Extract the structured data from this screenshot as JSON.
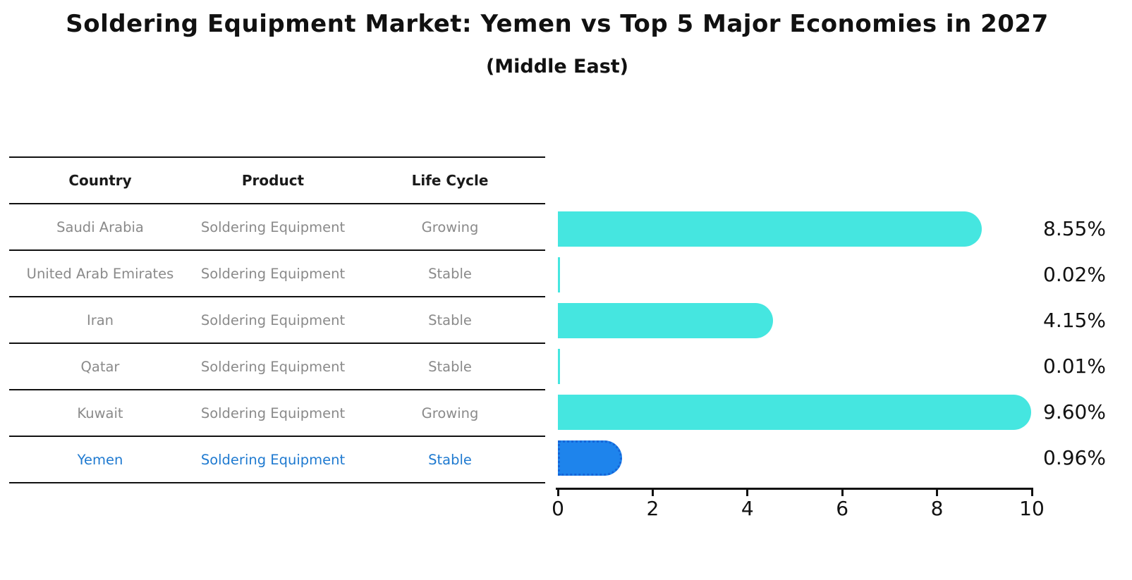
{
  "title": "Soldering Equipment Market: Yemen vs Top 5 Major Economies in 2027",
  "subtitle": "(Middle East)",
  "table": {
    "headers": [
      "Country",
      "Product",
      "Life Cycle"
    ],
    "rows": [
      {
        "country": "Saudi Arabia",
        "product": "Soldering Equipment",
        "life_cycle": "Growing",
        "highlight": false
      },
      {
        "country": "United Arab Emirates",
        "product": "Soldering Equipment",
        "life_cycle": "Stable",
        "highlight": false
      },
      {
        "country": "Iran",
        "product": "Soldering Equipment",
        "life_cycle": "Stable",
        "highlight": false
      },
      {
        "country": "Qatar",
        "product": "Soldering Equipment",
        "life_cycle": "Stable",
        "highlight": false
      },
      {
        "country": "Kuwait",
        "product": "Soldering Equipment",
        "life_cycle": "Growing",
        "highlight": false
      },
      {
        "country": "Yemen",
        "product": "Soldering Equipment",
        "life_cycle": "Stable",
        "highlight": true
      }
    ]
  },
  "chart_data": {
    "type": "bar",
    "orientation": "horizontal",
    "categories": [
      "Saudi Arabia",
      "United Arab Emirates",
      "Iran",
      "Qatar",
      "Kuwait",
      "Yemen"
    ],
    "values": [
      8.55,
      0.02,
      4.15,
      0.01,
      9.6,
      0.96
    ],
    "labels": [
      "8.55%",
      "0.02%",
      "4.15%",
      "0.01%",
      "9.60%",
      "0.96%"
    ],
    "highlight_index": 5,
    "xlim": [
      0,
      10
    ],
    "xticks": [
      0,
      2,
      4,
      6,
      8,
      10
    ],
    "grid": false,
    "legend": "none",
    "title": "Soldering Equipment Market: Yemen vs Top 5 Major Economies in 2027 (Middle East)",
    "xlabel": "",
    "ylabel": ""
  },
  "colors": {
    "bar_cyan": "#45E6E0",
    "bar_blue": "#1E84EC",
    "bar_blue_border": "#1565D8",
    "highlight_text": "#1F7AD0",
    "row_text": "#8A8A8A",
    "text_dark": "#111111",
    "line_black": "#111111"
  }
}
